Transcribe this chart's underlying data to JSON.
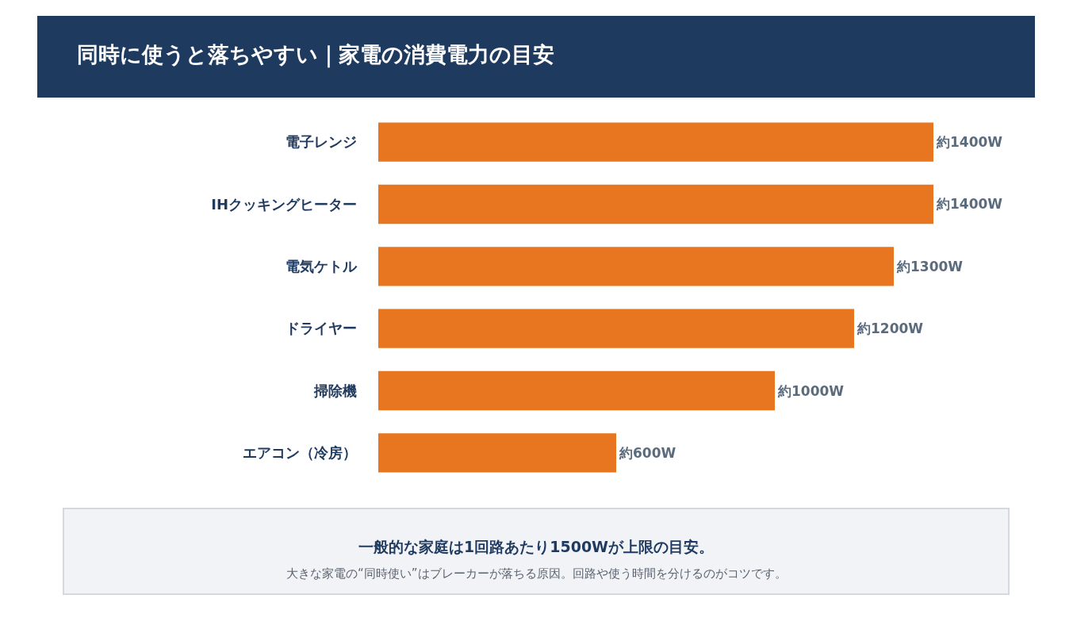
{
  "chart_data": {
    "type": "bar",
    "orientation": "horizontal",
    "title": "同時に使うと落ちやすい｜家電の消費電力の目安",
    "categories": [
      "電子レンジ",
      "IHクッキングヒーター",
      "電気ケトル",
      "ドライヤー",
      "掃除機",
      "エアコン（冷房）"
    ],
    "values": [
      1400,
      1400,
      1300,
      1200,
      1000,
      600
    ],
    "value_labels": [
      "約1400W",
      "約1400W",
      "約1300W",
      "約1200W",
      "約1000W",
      "約600W"
    ],
    "color": "#e8751f",
    "xlim": [
      0,
      1400
    ],
    "tick_labels": "y",
    "annotations": [
      "一般的な家庭は1回路あたり1500Wが上限の目安。",
      "大きな家電の“同時使い”はブレーカーが落ちる原因。回路や使う時間を分けるのがコツです。"
    ]
  }
}
